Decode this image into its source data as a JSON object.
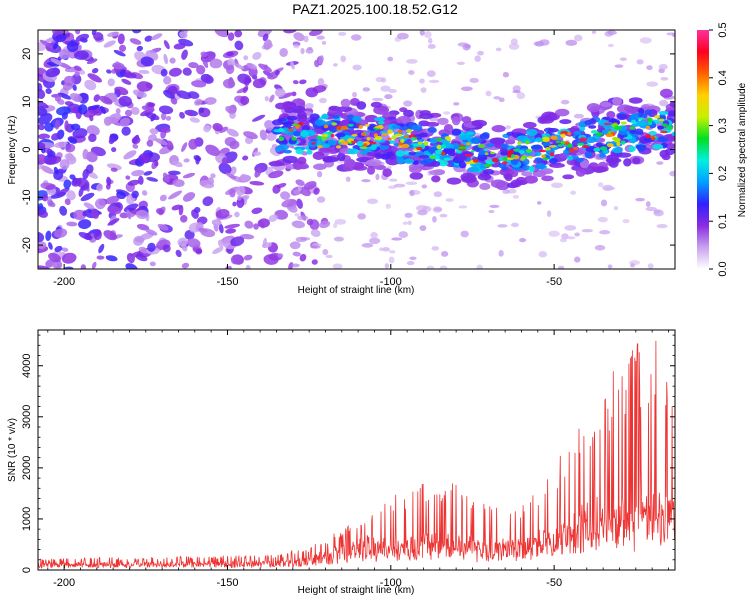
{
  "title": "PAZ1.2025.100.18.52.G12",
  "chart_data": [
    {
      "type": "heatmap",
      "xlabel": "Height of straight line (km)",
      "ylabel": "Frequency (Hz)",
      "xlim": [
        -208,
        -13
      ],
      "ylim": [
        -25,
        25
      ],
      "x_ticks": [
        -200,
        -150,
        -100,
        -50
      ],
      "x_tick_labels": [
        "-200",
        "-150",
        "-100",
        "-50"
      ],
      "y_ticks": [
        20,
        10,
        0,
        -10,
        -20
      ],
      "y_tick_labels": [
        "20",
        "10",
        "0",
        "-10",
        "-20"
      ],
      "colorbar": {
        "label": "Normalized spectral amplitude",
        "range": [
          0,
          0.5
        ],
        "ticks": [
          "0.0",
          "0.1",
          "0.2",
          "0.3",
          "0.4",
          "0.5"
        ],
        "colors": [
          "#ffffff",
          "#c8a2f0",
          "#8a2be2",
          "#3020ff",
          "#00a0ff",
          "#00f0e0",
          "#00e020",
          "#c8f000",
          "#ffd000",
          "#ff6000",
          "#ff0020",
          "#ff30a0"
        ]
      },
      "band": {
        "x_range": [
          -135,
          -13
        ],
        "center_frequency": [
          [
            -135,
            3
          ],
          [
            -110,
            3
          ],
          [
            -90,
            1
          ],
          [
            -70,
            -1
          ],
          [
            -55,
            0
          ],
          [
            -40,
            2
          ],
          [
            -25,
            4
          ],
          [
            -13,
            5
          ]
        ]
      },
      "grid": false
    },
    {
      "type": "line",
      "xlabel": "Height of straight line (km)",
      "ylabel": "SNR (10 * v/v)",
      "xlim": [
        -208,
        -13
      ],
      "ylim": [
        0,
        4700
      ],
      "x_ticks": [
        -200,
        -150,
        -100,
        -50
      ],
      "x_tick_labels": [
        "-200",
        "-150",
        "-100",
        "-50"
      ],
      "y_ticks": [
        0,
        1000,
        2000,
        3000,
        4000
      ],
      "y_tick_labels": [
        "0",
        "1000",
        "2000",
        "3000",
        "4000"
      ],
      "color": "#ee3333",
      "envelope": {
        "x": [
          -208,
          -185,
          -160,
          -135,
          -125,
          -115,
          -110,
          -100,
          -90,
          -80,
          -70,
          -60,
          -50,
          -40,
          -30,
          -20,
          -13
        ],
        "baseline": [
          120,
          120,
          130,
          140,
          200,
          400,
          500,
          450,
          550,
          500,
          450,
          500,
          600,
          800,
          1000,
          1200,
          1000
        ],
        "peak": [
          220,
          250,
          270,
          300,
          450,
          800,
          950,
          1500,
          1800,
          1700,
          1250,
          1300,
          2100,
          3200,
          4200,
          4700,
          3500
        ]
      },
      "grid": false
    }
  ]
}
